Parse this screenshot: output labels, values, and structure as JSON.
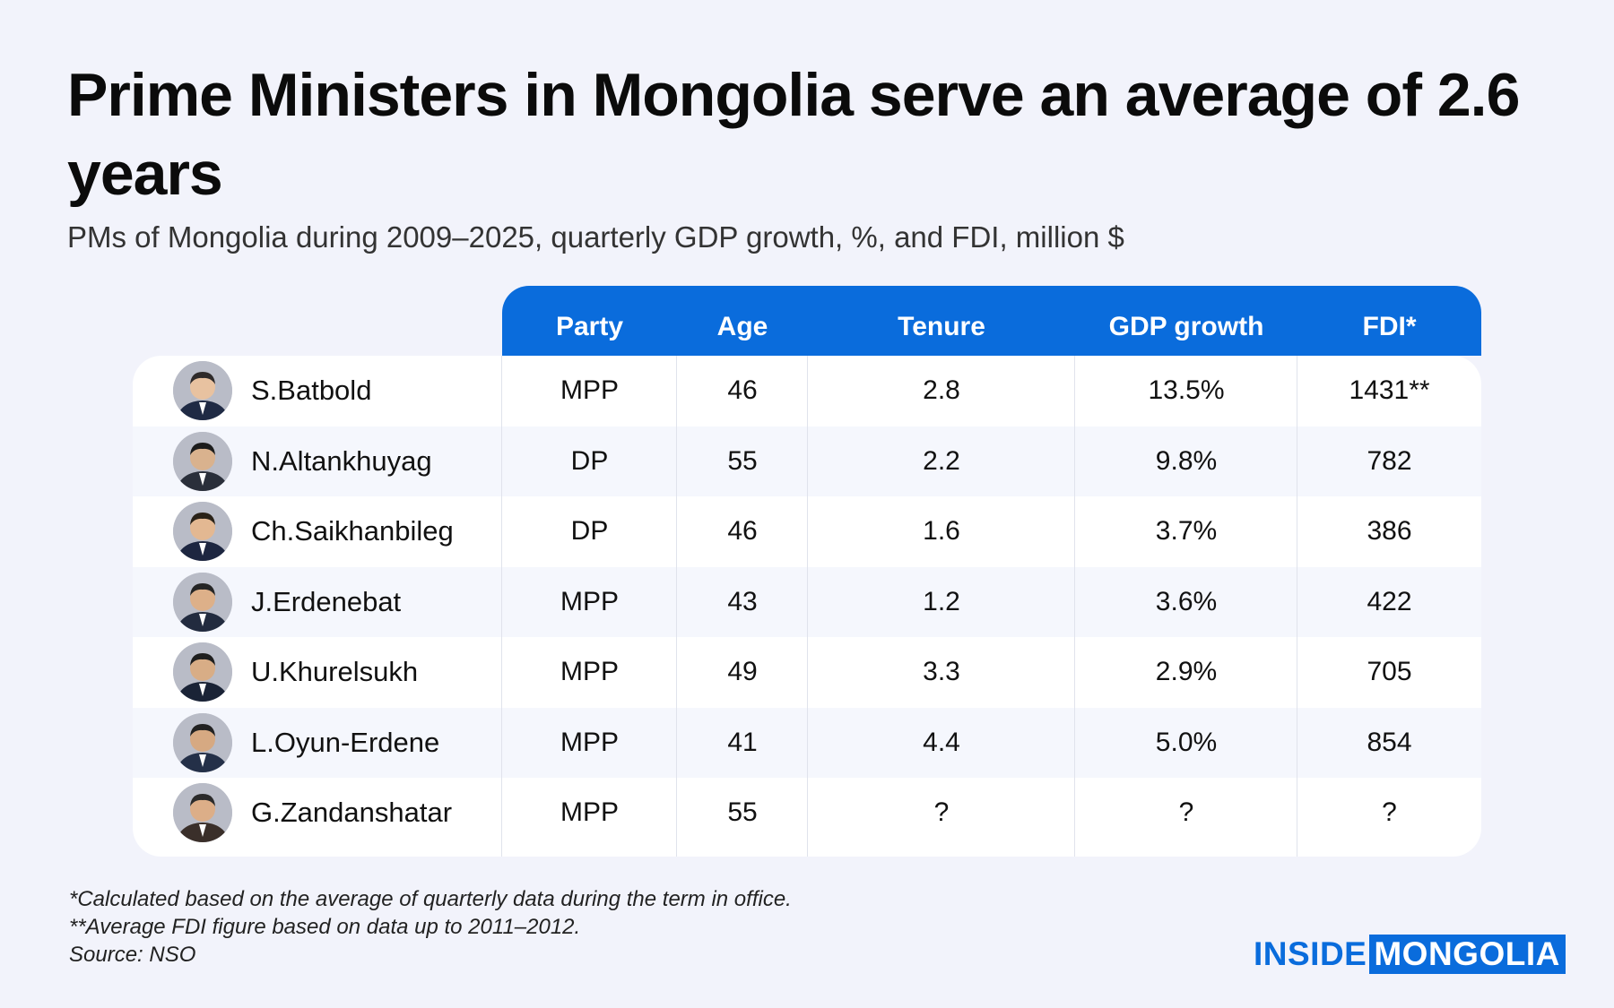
{
  "title": "Prime Ministers in Mongolia serve an average of 2.6 years",
  "subtitle": "PMs of Mongolia during 2009–2025, quarterly GDP growth, %, and FDI, million $",
  "colors": {
    "accent": "#0a6cdc",
    "background": "#f2f3fb",
    "row_shade": "#f5f7fd"
  },
  "chart_data": {
    "type": "table",
    "columns": [
      "Party",
      "Age",
      "Tenure",
      "GDP growth",
      "FDI*"
    ],
    "rows": [
      {
        "name": "S.Batbold",
        "avatar_icon": "person-portrait-icon",
        "party": "MPP",
        "age": "46",
        "tenure": "2.8",
        "gdp_growth": "13.5%",
        "fdi": "1431**"
      },
      {
        "name": "N.Altankhuyag",
        "avatar_icon": "person-portrait-icon",
        "party": "DP",
        "age": "55",
        "tenure": "2.2",
        "gdp_growth": "9.8%",
        "fdi": "782"
      },
      {
        "name": "Ch.Saikhanbileg",
        "avatar_icon": "person-portrait-icon",
        "party": "DP",
        "age": "46",
        "tenure": "1.6",
        "gdp_growth": "3.7%",
        "fdi": "386"
      },
      {
        "name": "J.Erdenebat",
        "avatar_icon": "person-portrait-icon",
        "party": "MPP",
        "age": "43",
        "tenure": "1.2",
        "gdp_growth": "3.6%",
        "fdi": "422"
      },
      {
        "name": "U.Khurelsukh",
        "avatar_icon": "person-portrait-icon",
        "party": "MPP",
        "age": "49",
        "tenure": "3.3",
        "gdp_growth": "2.9%",
        "fdi": "705"
      },
      {
        "name": "L.Oyun-Erdene",
        "avatar_icon": "person-portrait-icon",
        "party": "MPP",
        "age": "41",
        "tenure": "4.4",
        "gdp_growth": "5.0%",
        "fdi": "854"
      },
      {
        "name": "G.Zandanshatar",
        "avatar_icon": "person-portrait-icon",
        "party": "MPP",
        "age": "55",
        "tenure": "?",
        "gdp_growth": "?",
        "fdi": "?"
      }
    ]
  },
  "footnotes": {
    "note1": "*Calculated based on the average of quarterly data during the term in office.",
    "note2": "**Average FDI figure based on data up to 2011–2012.",
    "source": "Source: NSO"
  },
  "logo": {
    "part1": "INSIDE",
    "part2": "MONGOLIA"
  }
}
